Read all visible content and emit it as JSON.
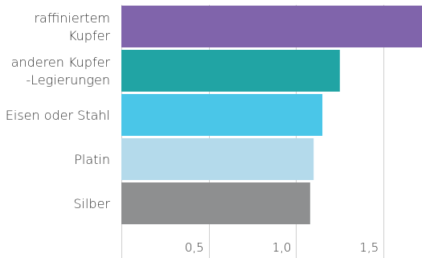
{
  "chart_data": {
    "type": "bar",
    "orientation": "horizontal",
    "categories": [
      [
        "raffiniertem",
        "Kupfer"
      ],
      [
        "anderen Kupfer",
        "-Legierungen"
      ],
      [
        "Eisen oder Stahl"
      ],
      [
        "Platin"
      ],
      [
        "Silber"
      ]
    ],
    "values": [
      1.72,
      1.25,
      1.15,
      1.1,
      1.08
    ],
    "colors": [
      "#8064AB",
      "#21A4A4",
      "#4AC6E8",
      "#B4DAEB",
      "#8E8F90"
    ],
    "xticks": [
      0.5,
      1.0,
      1.5
    ],
    "xtick_labels": [
      "0,5",
      "1,0",
      "1,5"
    ],
    "xlim": [
      0,
      1.72
    ],
    "grid": true,
    "title": "",
    "xlabel": "",
    "ylabel": ""
  }
}
